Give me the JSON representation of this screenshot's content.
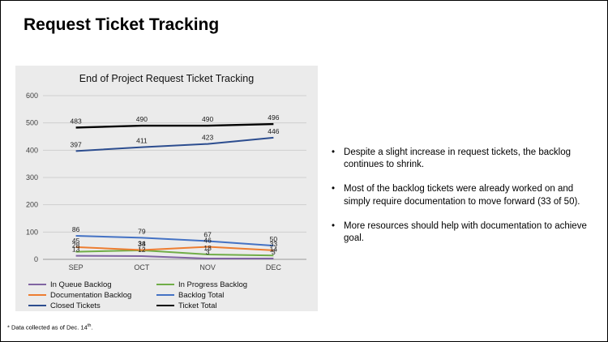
{
  "header": {
    "title": "Request Ticket Tracking"
  },
  "right_panel": {
    "bullet_char": "•",
    "bullets": [
      "Despite a slight increase in request tickets, the backlog continues to shrink.",
      "Most of the backlog tickets were already worked on and simply require documentation to move forward (33 of 50).",
      "More resources should help with documentation to achieve goal."
    ]
  },
  "footnote": {
    "prefix": "* Data collected as of Dec. 14",
    "sup": "th",
    "suffix": "."
  },
  "chart_data": {
    "type": "line",
    "title": "End of Project Request Ticket Tracking",
    "categories": [
      "SEP",
      "OCT",
      "NOV",
      "DEC"
    ],
    "yticks": [
      0,
      100,
      200,
      300,
      400,
      500,
      600
    ],
    "ylim": [
      0,
      600
    ],
    "grid": true,
    "legend_position": "bottom",
    "panel_background": "#ebebeb",
    "series": [
      {
        "name": "In Queue Backlog",
        "color": "#8064a2",
        "values": [
          13,
          12,
          3,
          3
        ]
      },
      {
        "name": "In Progress Backlog",
        "color": "#70ad47",
        "values": [
          28,
          33,
          18,
          14
        ]
      },
      {
        "name": "Documentation Backlog",
        "color": "#ed7d31",
        "values": [
          45,
          34,
          46,
          33
        ]
      },
      {
        "name": "Backlog Total",
        "color": "#4472c4",
        "values": [
          86,
          79,
          67,
          50
        ]
      },
      {
        "name": "Closed Tickets",
        "color": "#2c4d8f",
        "values": [
          397,
          411,
          423,
          446
        ]
      },
      {
        "name": "Ticket Total",
        "color": "#000000",
        "values": [
          483,
          490,
          490,
          496
        ]
      }
    ]
  }
}
